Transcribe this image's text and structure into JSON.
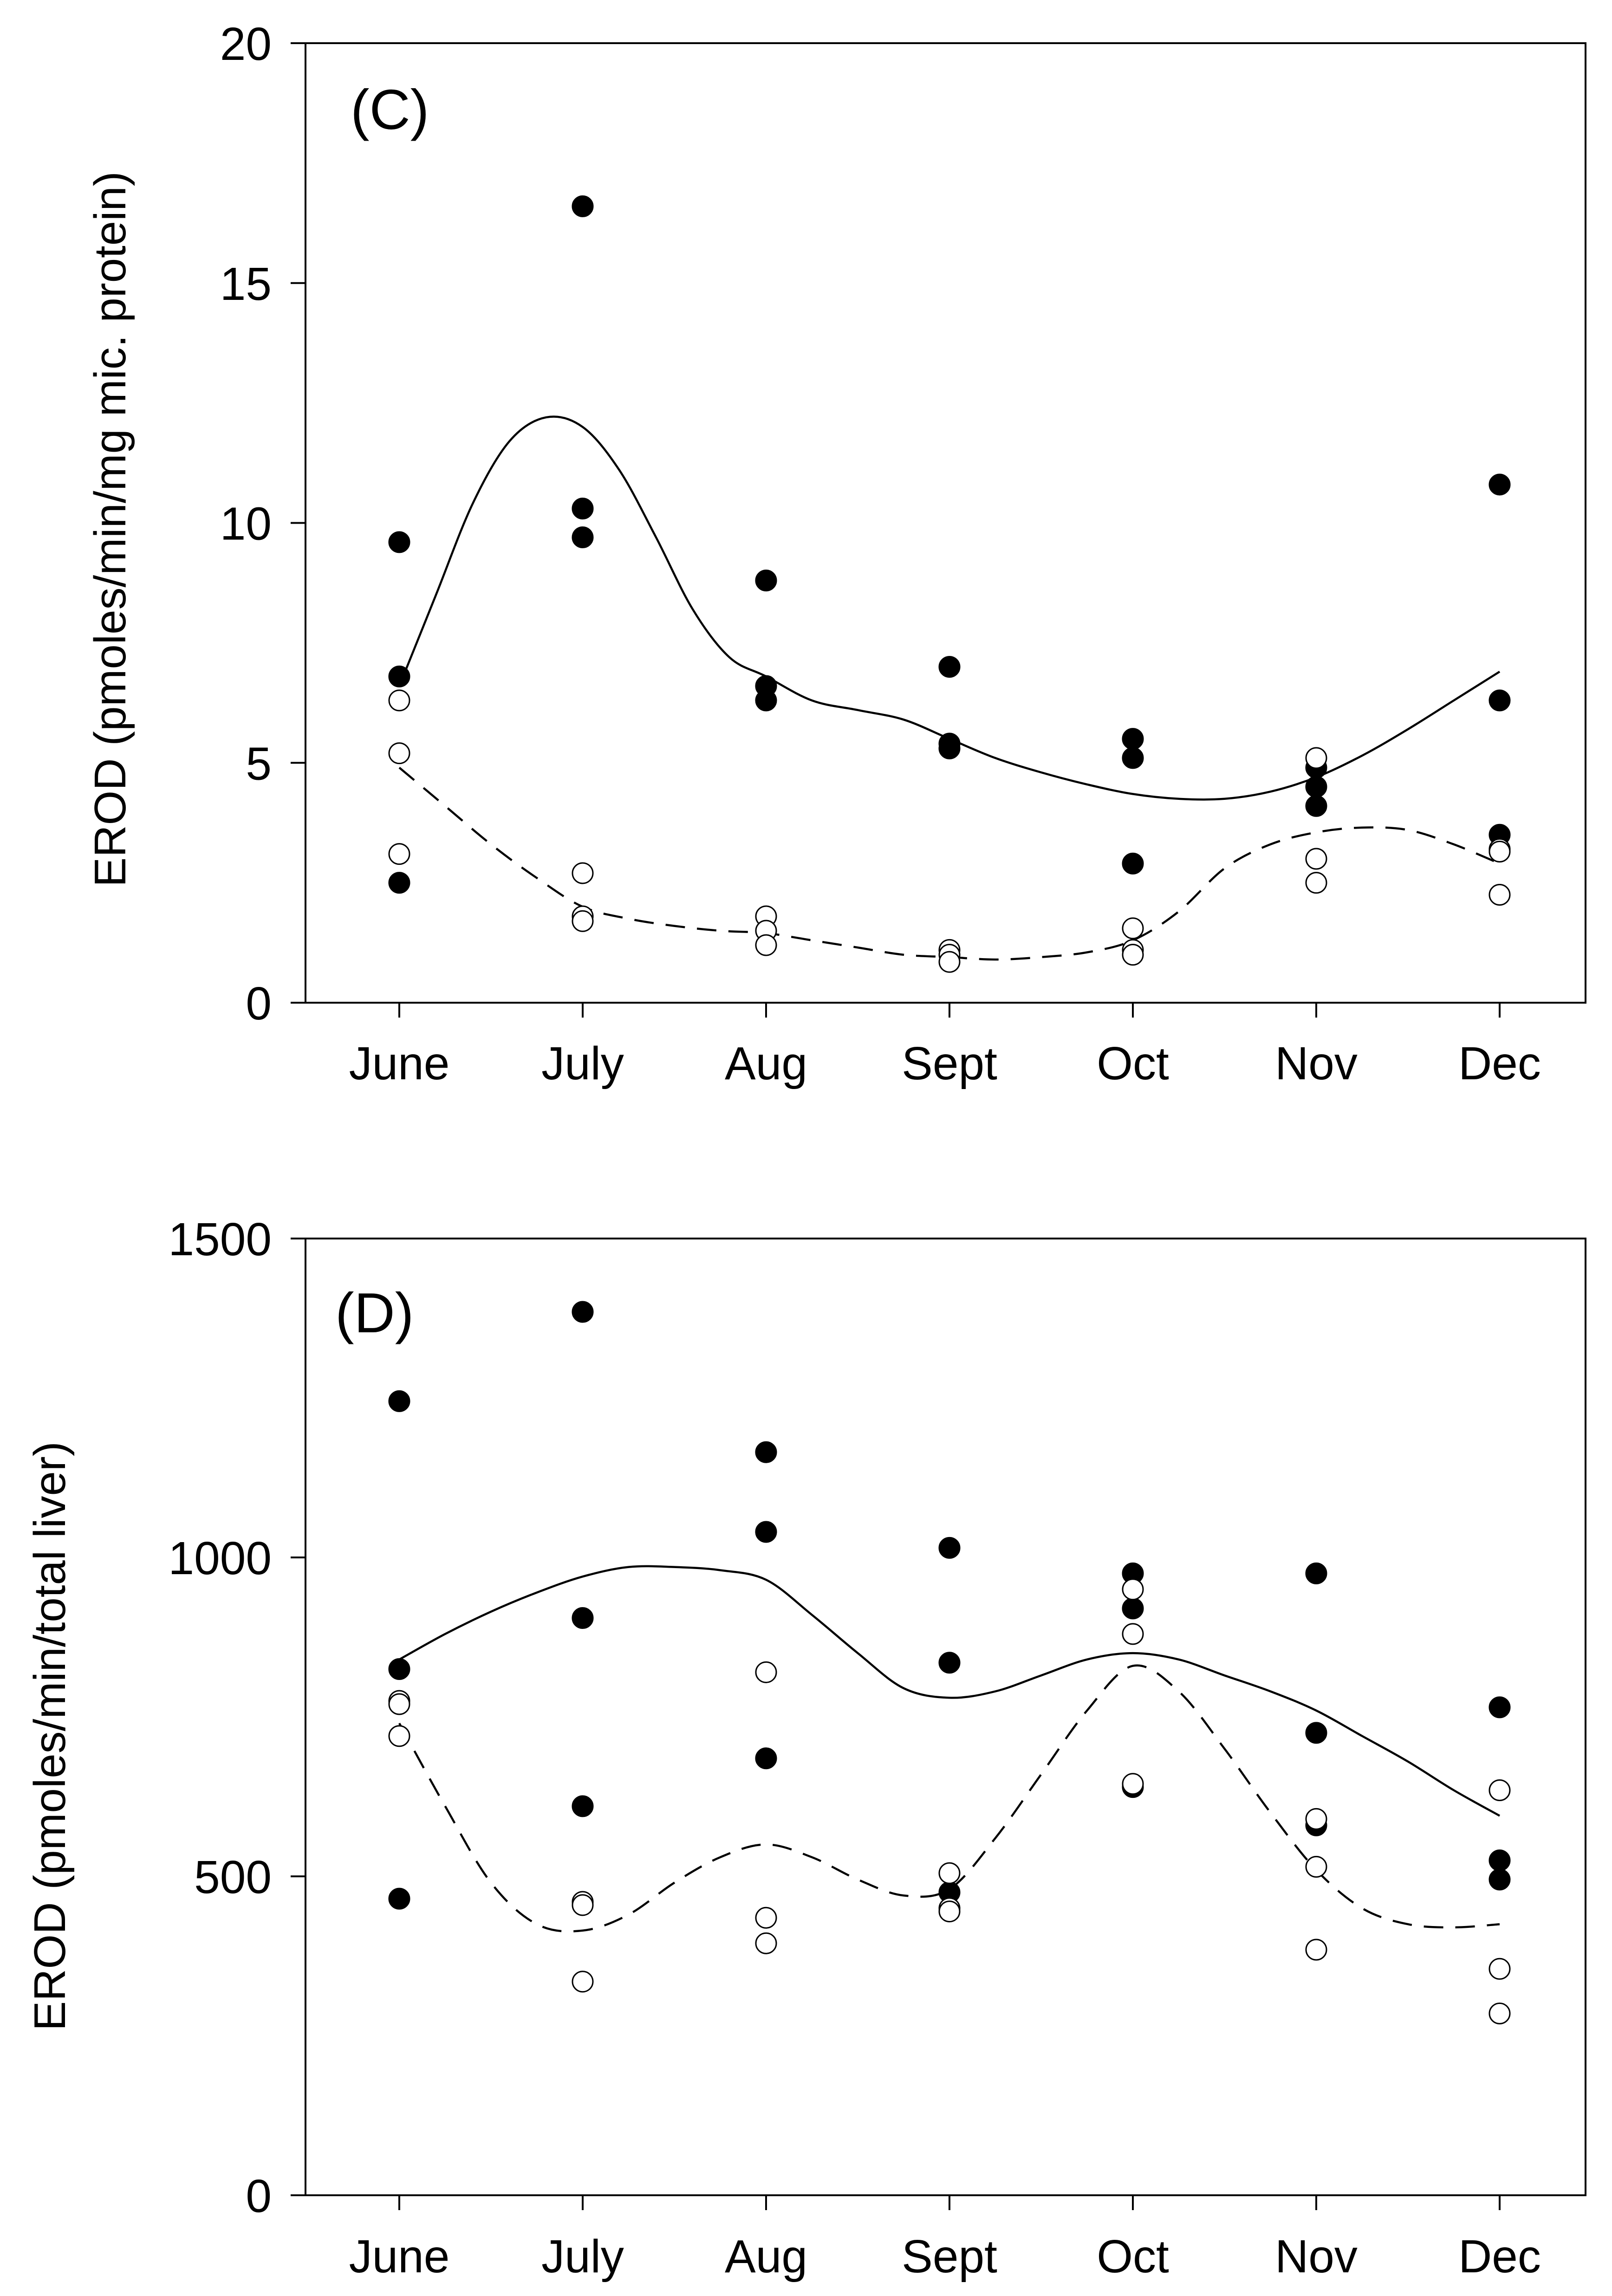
{
  "chart_data": [
    {
      "type": "scatter",
      "panel_label": "(C)",
      "title": "",
      "xlabel": "",
      "ylabel": "EROD (pmoles/min/mg mic. protein)",
      "categories": [
        "June",
        "July",
        "Aug",
        "Sept",
        "Oct",
        "Nov",
        "Dec"
      ],
      "ylim": [
        0,
        20
      ],
      "yticks": [
        0,
        5,
        10,
        15,
        20
      ],
      "series": [
        {
          "name": "filled",
          "marker": "filled-circle",
          "points": [
            [
              "June",
              9.6
            ],
            [
              "June",
              6.8
            ],
            [
              "June",
              2.5
            ],
            [
              "July",
              16.6
            ],
            [
              "July",
              10.3
            ],
            [
              "July",
              9.7
            ],
            [
              "Aug",
              8.8
            ],
            [
              "Aug",
              6.6
            ],
            [
              "Aug",
              6.3
            ],
            [
              "Sept",
              7.0
            ],
            [
              "Sept",
              5.4
            ],
            [
              "Sept",
              5.3
            ],
            [
              "Oct",
              5.5
            ],
            [
              "Oct",
              5.1
            ],
            [
              "Oct",
              2.9
            ],
            [
              "Nov",
              4.9
            ],
            [
              "Nov",
              4.5
            ],
            [
              "Nov",
              4.1
            ],
            [
              "Dec",
              10.8
            ],
            [
              "Dec",
              6.3
            ],
            [
              "Dec",
              3.5
            ]
          ],
          "fit": {
            "style": "solid",
            "x": [
              0,
              0.2,
              0.4,
              0.6,
              0.8,
              1.0,
              1.2,
              1.4,
              1.6,
              1.8,
              2.0,
              2.25,
              2.5,
              2.75,
              3.0,
              3.25,
              3.5,
              3.75,
              4.0,
              4.25,
              4.5,
              4.75,
              5.0,
              5.25,
              5.5,
              5.75,
              6.0
            ],
            "y": [
              6.6,
              8.5,
              10.4,
              11.7,
              12.2,
              12.0,
              11.1,
              9.7,
              8.2,
              7.2,
              6.8,
              6.3,
              6.1,
              5.9,
              5.5,
              5.1,
              4.8,
              4.55,
              4.35,
              4.25,
              4.25,
              4.4,
              4.7,
              5.15,
              5.7,
              6.3,
              6.9
            ]
          }
        },
        {
          "name": "open",
          "marker": "open-circle",
          "points": [
            [
              "June",
              6.3
            ],
            [
              "June",
              5.2
            ],
            [
              "June",
              3.1
            ],
            [
              "July",
              2.7
            ],
            [
              "July",
              1.8
            ],
            [
              "July",
              1.7
            ],
            [
              "Aug",
              1.8
            ],
            [
              "Aug",
              1.5
            ],
            [
              "Aug",
              1.2
            ],
            [
              "Sept",
              1.1
            ],
            [
              "Sept",
              1.0
            ],
            [
              "Sept",
              0.85
            ],
            [
              "Oct",
              1.55
            ],
            [
              "Oct",
              1.1
            ],
            [
              "Oct",
              1.0
            ],
            [
              "Nov",
              5.1
            ],
            [
              "Nov",
              3.0
            ],
            [
              "Nov",
              2.5
            ],
            [
              "Dec",
              3.2
            ],
            [
              "Dec",
              3.15
            ],
            [
              "Dec",
              2.25
            ]
          ],
          "fit": {
            "style": "dashed",
            "x": [
              0,
              0.25,
              0.5,
              0.75,
              1.0,
              1.25,
              1.5,
              1.75,
              2.0,
              2.25,
              2.5,
              2.75,
              3.0,
              3.25,
              3.5,
              3.75,
              4.0,
              4.25,
              4.5,
              4.75,
              5.0,
              5.25,
              5.5,
              5.75,
              6.0
            ],
            "y": [
              4.9,
              4.1,
              3.3,
              2.6,
              2.0,
              1.75,
              1.6,
              1.5,
              1.45,
              1.3,
              1.15,
              1.0,
              0.95,
              0.9,
              0.95,
              1.05,
              1.3,
              1.9,
              2.8,
              3.3,
              3.55,
              3.65,
              3.6,
              3.3,
              2.9
            ]
          }
        }
      ]
    },
    {
      "type": "scatter",
      "panel_label": "(D)",
      "title": "",
      "xlabel": "",
      "ylabel": "EROD (pmoles/min/total liver)",
      "categories": [
        "June",
        "July",
        "Aug",
        "Sept",
        "Oct",
        "Nov",
        "Dec"
      ],
      "ylim": [
        0,
        1500
      ],
      "yticks": [
        0,
        500,
        1000,
        1500
      ],
      "series": [
        {
          "name": "filled",
          "marker": "filled-circle",
          "points": [
            [
              "June",
              1245
            ],
            [
              "June",
              825
            ],
            [
              "June",
              465
            ],
            [
              "July",
              1385
            ],
            [
              "July",
              905
            ],
            [
              "July",
              610
            ],
            [
              "Aug",
              1165
            ],
            [
              "Aug",
              1040
            ],
            [
              "Aug",
              685
            ],
            [
              "Sept",
              1015
            ],
            [
              "Sept",
              835
            ],
            [
              "Sept",
              475
            ],
            [
              "Oct",
              975
            ],
            [
              "Oct",
              920
            ],
            [
              "Oct",
              640
            ],
            [
              "Nov",
              975
            ],
            [
              "Nov",
              725
            ],
            [
              "Nov",
              580
            ],
            [
              "Dec",
              765
            ],
            [
              "Dec",
              525
            ],
            [
              "Dec",
              495
            ]
          ],
          "fit": {
            "style": "solid",
            "x": [
              0,
              0.25,
              0.5,
              0.75,
              1.0,
              1.25,
              1.5,
              1.75,
              2.0,
              2.25,
              2.5,
              2.75,
              3.0,
              3.25,
              3.5,
              3.75,
              4.0,
              4.25,
              4.5,
              4.75,
              5.0,
              5.25,
              5.5,
              5.75,
              6.0
            ],
            "y": [
              840,
              880,
              915,
              945,
              970,
              985,
              985,
              980,
              965,
              910,
              850,
              795,
              780,
              790,
              815,
              840,
              850,
              840,
              815,
              790,
              760,
              720,
              680,
              635,
              595
            ]
          }
        },
        {
          "name": "open",
          "marker": "open-circle",
          "points": [
            [
              "June",
              775
            ],
            [
              "June",
              770
            ],
            [
              "June",
              720
            ],
            [
              "July",
              460
            ],
            [
              "July",
              455
            ],
            [
              "July",
              335
            ],
            [
              "Aug",
              820
            ],
            [
              "Aug",
              435
            ],
            [
              "Aug",
              395
            ],
            [
              "Sept",
              505
            ],
            [
              "Sept",
              450
            ],
            [
              "Sept",
              445
            ],
            [
              "Oct",
              950
            ],
            [
              "Oct",
              880
            ],
            [
              "Oct",
              645
            ],
            [
              "Nov",
              590
            ],
            [
              "Nov",
              515
            ],
            [
              "Nov",
              385
            ],
            [
              "Dec",
              635
            ],
            [
              "Dec",
              355
            ],
            [
              "Dec",
              285
            ]
          ],
          "fit": {
            "style": "dashed",
            "x": [
              0,
              0.25,
              0.5,
              0.75,
              1.0,
              1.25,
              1.5,
              1.75,
              2.0,
              2.25,
              2.5,
              2.75,
              3.0,
              3.25,
              3.5,
              3.75,
              4.0,
              4.25,
              4.5,
              4.75,
              5.0,
              5.25,
              5.5,
              5.75,
              6.0
            ],
            "y": [
              740,
              610,
              490,
              425,
              415,
              440,
              490,
              530,
              550,
              530,
              495,
              470,
              480,
              560,
              660,
              760,
              830,
              790,
              700,
              600,
              510,
              450,
              425,
              420,
              425
            ]
          }
        }
      ]
    }
  ]
}
